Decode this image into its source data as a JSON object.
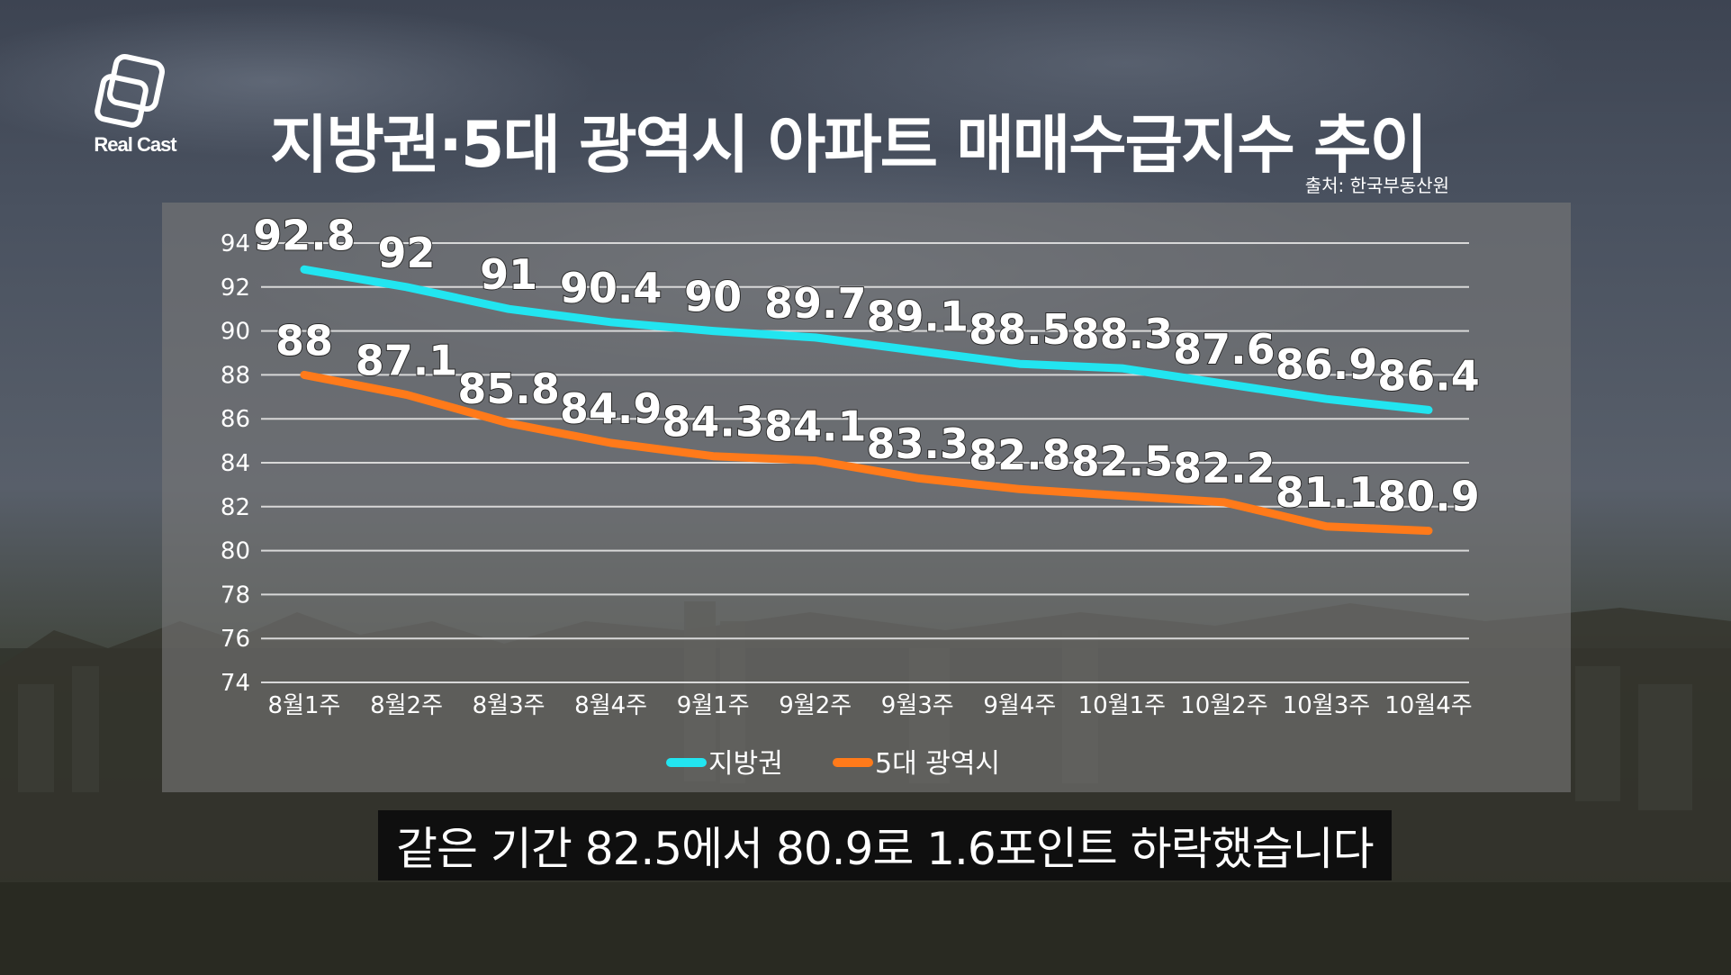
{
  "brand": {
    "logo_text": "Real Cast"
  },
  "title": "지방권·5대 광역시 아파트 매매수급지수 추이",
  "source": "출처: 한국부동산원",
  "caption": "같은 기간 82.5에서 80.9로 1.6포인트 하락했습니다",
  "colors": {
    "series_1": "#22e5f0",
    "series_2": "#ff7a1a",
    "panel": "#787878",
    "caption_bg": "#0f0f0f"
  },
  "chart_data": {
    "type": "line",
    "title": "지방권·5대 광역시 아파트 매매수급지수 추이",
    "categories": [
      "8월1주",
      "8월2주",
      "8월3주",
      "8월4주",
      "9월1주",
      "9월2주",
      "9월3주",
      "9월4주",
      "10월1주",
      "10월2주",
      "10월3주",
      "10월4주"
    ],
    "series": [
      {
        "name": "지방권",
        "values": [
          92.8,
          92,
          91,
          90.4,
          90,
          89.7,
          89.1,
          88.5,
          88.3,
          87.6,
          86.9,
          86.4
        ]
      },
      {
        "name": "5대 광역시",
        "values": [
          88,
          87.1,
          85.8,
          84.9,
          84.3,
          84.1,
          83.3,
          82.8,
          82.5,
          82.2,
          81.1,
          80.9
        ]
      }
    ],
    "y_ticks": [
      74,
      76,
      78,
      80,
      82,
      84,
      86,
      88,
      90,
      92,
      94
    ],
    "ylim": [
      74,
      94
    ],
    "grid": true,
    "legend": "bottom-center",
    "data_labels": true
  }
}
